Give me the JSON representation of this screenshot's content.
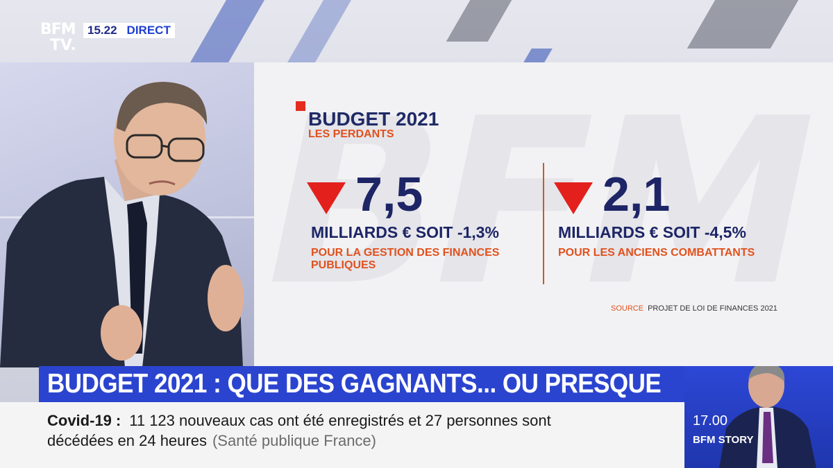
{
  "channel": {
    "logo_line1": "BFM",
    "logo_line2": "TV.",
    "clock": "15.22",
    "live_label": "DIRECT"
  },
  "graphic": {
    "watermark": "BFM",
    "title": "BUDGET 2021",
    "subtitle": "LES PERDANTS",
    "stats": [
      {
        "value": "7,5",
        "unit": "MILLIARDS € SOIT -1,3%",
        "description": "POUR LA GESTION DES FINANCES PUBLIQUES"
      },
      {
        "value": "2,1",
        "unit": "MILLIARDS € SOIT -4,5%",
        "description": "POUR LES ANCIENS COMBATTANTS"
      }
    ],
    "source_label": "SOURCE",
    "source_text": "PROJET DE LOI DE FINANCES 2021"
  },
  "headline": "BUDGET 2021 : QUE DES GAGNANTS... OU PRESQUE",
  "ticker": {
    "topic": "Covid-19",
    "line1": "11 123 nouveaux cas ont été enregistrés et 27 personnes sont",
    "line2": "décédées en 24 heures",
    "source": "(Santé publique France)"
  },
  "next_program": {
    "time": "17.00",
    "show": "BFM STORY"
  },
  "colors": {
    "accent_red": "#e3201c",
    "navy": "#1d2566",
    "orange": "#e0511d",
    "bfm_blue": "#2b44cf"
  }
}
